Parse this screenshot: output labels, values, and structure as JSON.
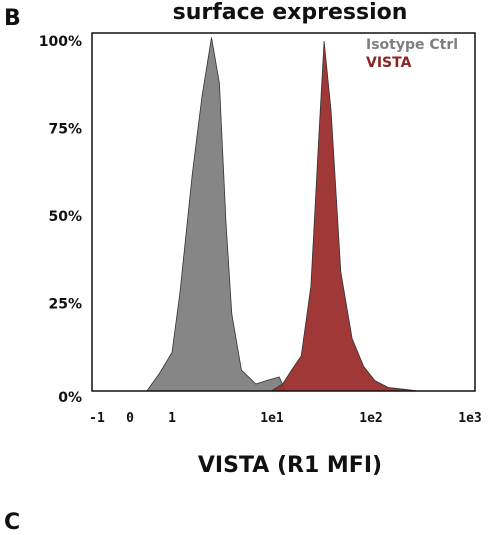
{
  "panel_labels": {
    "top": "B",
    "bottom": "C"
  },
  "chart_data": {
    "type": "area",
    "title": "surface expression",
    "xlabel": "VISTA (R1 MFI)",
    "ylabel": "",
    "x_scale": "biexponential (log decades)",
    "x_ticks": [
      "-1",
      "0",
      "1",
      "1e1",
      "1e2",
      "1e3"
    ],
    "y_ticks": [
      "100%",
      "75%",
      "50%",
      "25%",
      "0%"
    ],
    "ylim": [
      0,
      100
    ],
    "legend_position": "top-right",
    "series": [
      {
        "name": "Isotype Ctrl",
        "color": "#808080",
        "x": [
          0.4,
          0.7,
          1.0,
          1.2,
          1.6,
          2.0,
          2.5,
          3.0,
          3.5,
          4.0,
          5.0,
          7.0,
          9.0,
          12.0,
          14.0
        ],
        "y": [
          0,
          5,
          11,
          28,
          62,
          84,
          101,
          88,
          48,
          22,
          6,
          2,
          3,
          4,
          0
        ]
      },
      {
        "name": "VISTA",
        "color": "#9c2d2d",
        "x": [
          10,
          13,
          16,
          20,
          25,
          30,
          34,
          40,
          50,
          65,
          85,
          110,
          150,
          220,
          300
        ],
        "y": [
          0,
          2,
          6,
          10,
          30,
          72,
          100,
          80,
          34,
          15,
          7,
          3,
          1,
          0.5,
          0
        ]
      }
    ]
  }
}
